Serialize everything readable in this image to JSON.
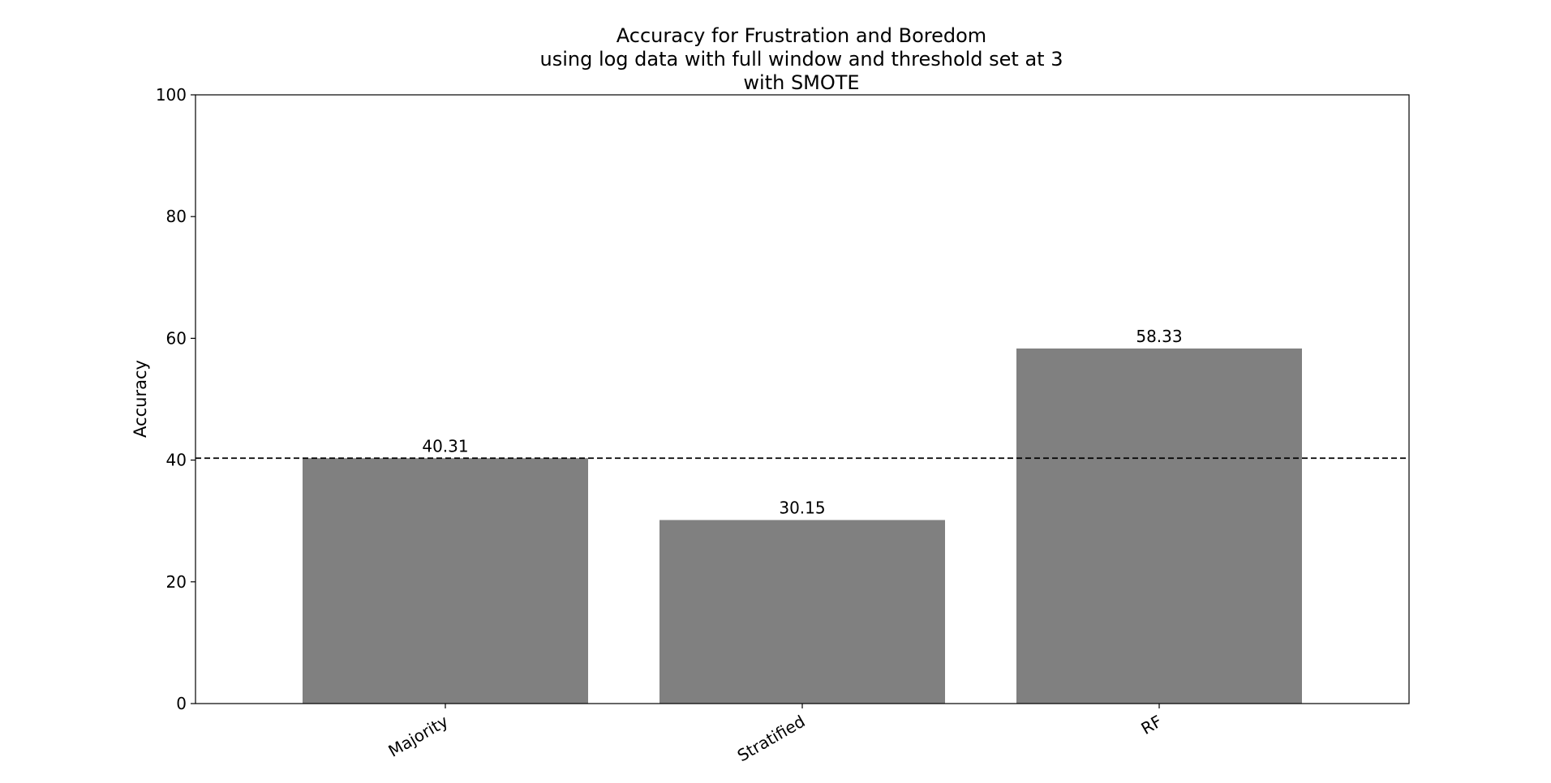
{
  "chart_data": {
    "type": "bar",
    "title_lines": [
      "Accuracy for Frustration and Boredom",
      "using log data with full window and threshold set at 3",
      "with SMOTE"
    ],
    "xlabel": "",
    "ylabel": "Accuracy",
    "categories": [
      "Majority",
      "Stratified",
      "RF"
    ],
    "values": [
      40.31,
      30.15,
      58.33
    ],
    "value_labels": [
      "40.31",
      "30.15",
      "58.33"
    ],
    "ylim": [
      0,
      100
    ],
    "yticks": [
      0,
      20,
      40,
      60,
      80,
      100
    ],
    "ytick_labels": [
      "0",
      "20",
      "40",
      "60",
      "80",
      "100"
    ],
    "reference_line": {
      "value": 40.31,
      "style": "dashed"
    },
    "bar_color": "#808080",
    "reference_line_color": "#000000",
    "grid": false,
    "legend": "none"
  }
}
